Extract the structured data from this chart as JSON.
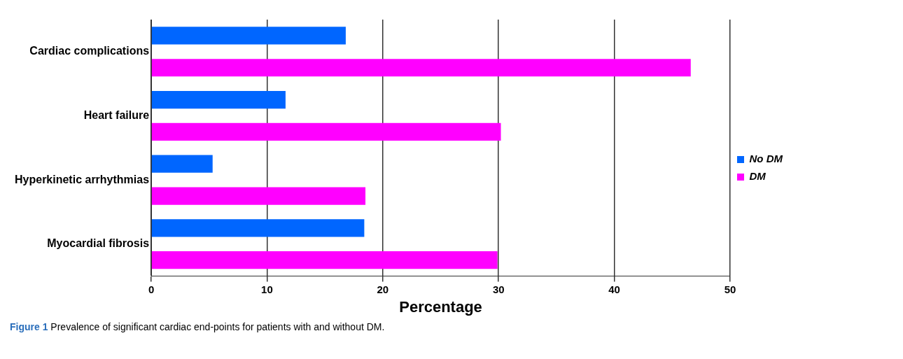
{
  "chart_data": {
    "type": "bar",
    "orientation": "horizontal",
    "categories": [
      "Cardiac complications",
      "Heart failure",
      "Hyperkinetic arrhythmias",
      "Myocardial fibrosis"
    ],
    "series": [
      {
        "name": "No DM",
        "color": "#0066ff",
        "values": [
          16.8,
          11.6,
          5.3,
          18.4
        ]
      },
      {
        "name": "DM",
        "color": "#ff00ff",
        "values": [
          46.6,
          30.2,
          18.5,
          29.9
        ]
      }
    ],
    "xlabel": "Percentage",
    "xlim": [
      0,
      50
    ],
    "xticks": [
      0,
      10,
      20,
      30,
      40,
      50
    ],
    "grid": "x",
    "legend": "right",
    "annotations": [
      "Figure 1 Prevalence of significant cardiac end-points for patients with and without DM."
    ]
  }
}
